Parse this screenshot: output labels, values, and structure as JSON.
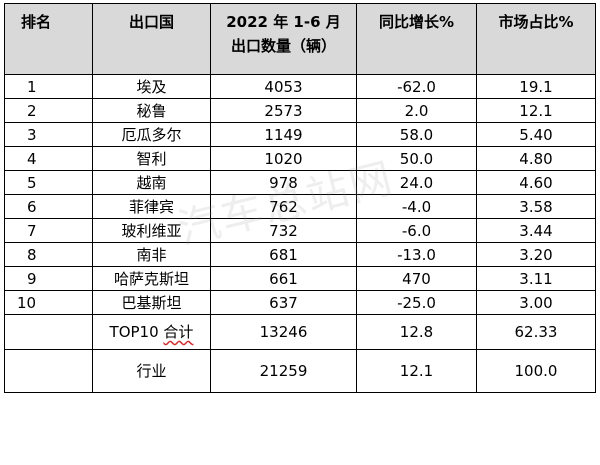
{
  "header": {
    "rank": "排名",
    "country": "出口国",
    "volume_line1": "2022 年 1-6 月",
    "volume_line2": "出口数量（辆）",
    "yoy": "同比增长%",
    "share": "市场占比%"
  },
  "rows": [
    {
      "rank": "1",
      "country": "埃及",
      "volume": "4053",
      "yoy": "-62.0",
      "share": "19.1"
    },
    {
      "rank": "2",
      "country": "秘鲁",
      "volume": "2573",
      "yoy": "2.0",
      "share": "12.1"
    },
    {
      "rank": "3",
      "country": "厄瓜多尔",
      "volume": "1149",
      "yoy": "58.0",
      "share": "5.40"
    },
    {
      "rank": "4",
      "country": "智利",
      "volume": "1020",
      "yoy": "50.0",
      "share": "4.80"
    },
    {
      "rank": "5",
      "country": "越南",
      "volume": "978",
      "yoy": "24.0",
      "share": "4.60"
    },
    {
      "rank": "6",
      "country": "菲律宾",
      "volume": "762",
      "yoy": "-4.0",
      "share": "3.58"
    },
    {
      "rank": "7",
      "country": "玻利维亚",
      "volume": "732",
      "yoy": "-6.0",
      "share": "3.44"
    },
    {
      "rank": "8",
      "country": "南非",
      "volume": "681",
      "yoy": "-13.0",
      "share": "3.20"
    },
    {
      "rank": "9",
      "country": "哈萨克斯坦",
      "volume": "661",
      "yoy": "470",
      "share": "3.11"
    },
    {
      "rank": "10",
      "country": "巴基斯坦",
      "volume": "637",
      "yoy": "-25.0",
      "share": "3.00"
    }
  ],
  "summary": {
    "top10": {
      "label_prefix": "TOP10 ",
      "label_suffix": "合计",
      "volume": "13246",
      "yoy": "12.8",
      "share": "62.33"
    },
    "industry": {
      "label": "行业",
      "volume": "21259",
      "yoy": "12.1",
      "share": "100.0"
    }
  },
  "watermark": "汽车总站网"
}
